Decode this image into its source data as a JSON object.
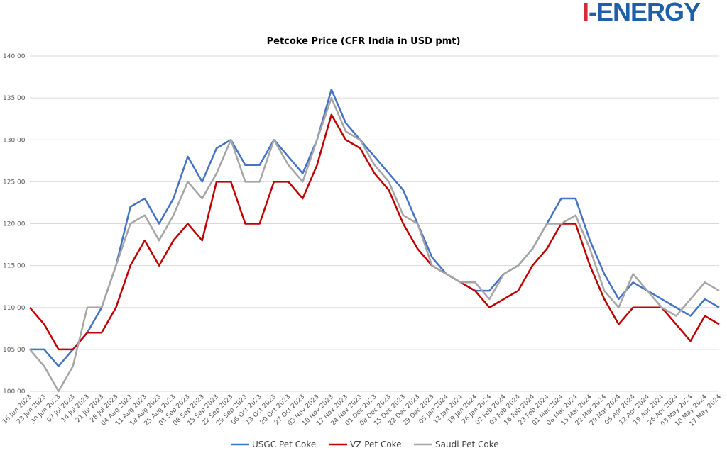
{
  "logo": {
    "text": "I-ENERGY"
  },
  "chart_data": {
    "type": "line",
    "title": "Petcoke Price (CFR India in USD pmt)",
    "xlabel": "",
    "ylabel": "",
    "ylim": [
      100,
      140
    ],
    "yticks": [
      "100.00",
      "105.00",
      "110.00",
      "115.00",
      "120.00",
      "125.00",
      "130.00",
      "135.00",
      "140.00"
    ],
    "grid": true,
    "legend_position": "bottom",
    "categories": [
      "16 Jun 2023",
      "23 Jun 2023",
      "30 Jun 2023",
      "07 Jul 2023",
      "14 Jul 2023",
      "21 Jul 2023",
      "28 Jul 2023",
      "04 Aug 2023",
      "11 Aug 2023",
      "18 Aug 2023",
      "25 Aug 2023",
      "01 Sep 2023",
      "08 Sep 2023",
      "15 Sep 2023",
      "22 Sep 2023",
      "29 Sep 2023",
      "06 Oct 2023",
      "13 Oct 2023",
      "20 Oct 2023",
      "27 Oct 2023",
      "03 Nov 2023",
      "10 Nov 2023",
      "17 Nov 2023",
      "24 Nov 2023",
      "01 Dec 2023",
      "08 Dec 2023",
      "15 Dec 2023",
      "22 Dec 2023",
      "29 Dec 2023",
      "05 Jan 2024",
      "12 Jan 2024",
      "19 Jan 2024",
      "26 Jan 2024",
      "02 Feb 2024",
      "09 Feb 2024",
      "16 Feb 2024",
      "23 Feb 2024",
      "01 Mar 2024",
      "08 Mar 2024",
      "15 Mar 2024",
      "22 Mar 2024",
      "29 Mar 2024",
      "05 Apr 2024",
      "12 Apr 2024",
      "19 Apr 2024",
      "26 Apr 2024",
      "03 May 2024",
      "10 May 2024",
      "17 May 2024"
    ],
    "series": [
      {
        "name": "USGC Pet Coke",
        "color": "#4472c4",
        "values": [
          105,
          105,
          103,
          105,
          107,
          110,
          115,
          122,
          123,
          120,
          123,
          128,
          125,
          129,
          130,
          127,
          127,
          130,
          128,
          126,
          130,
          136,
          132,
          130,
          128,
          126,
          124,
          120,
          116,
          114,
          113,
          112,
          112,
          114,
          115,
          117,
          120,
          123,
          123,
          118,
          114,
          111,
          113,
          112,
          111,
          110,
          109,
          111,
          110
        ]
      },
      {
        "name": "VZ Pet Coke",
        "color": "#c00000",
        "values": [
          110,
          108,
          105,
          105,
          107,
          107,
          110,
          115,
          118,
          115,
          118,
          120,
          118,
          125,
          125,
          120,
          120,
          125,
          125,
          123,
          127,
          133,
          130,
          129,
          126,
          124,
          120,
          117,
          115,
          114,
          113,
          112,
          110,
          111,
          112,
          115,
          117,
          120,
          120,
          115,
          111,
          108,
          110,
          110,
          110,
          108,
          106,
          109,
          108
        ]
      },
      {
        "name": "Saudi Pet Coke",
        "color": "#a5a5a5",
        "values": [
          105,
          103,
          100,
          103,
          110,
          110,
          115,
          120,
          121,
          118,
          121,
          125,
          123,
          126,
          130,
          125,
          125,
          130,
          127,
          125,
          130,
          135,
          131,
          130,
          127,
          125,
          121,
          120,
          115,
          114,
          113,
          113,
          111,
          114,
          115,
          117,
          120,
          120,
          121,
          117,
          112,
          110,
          114,
          112,
          110,
          109,
          111,
          113,
          112
        ]
      }
    ]
  }
}
